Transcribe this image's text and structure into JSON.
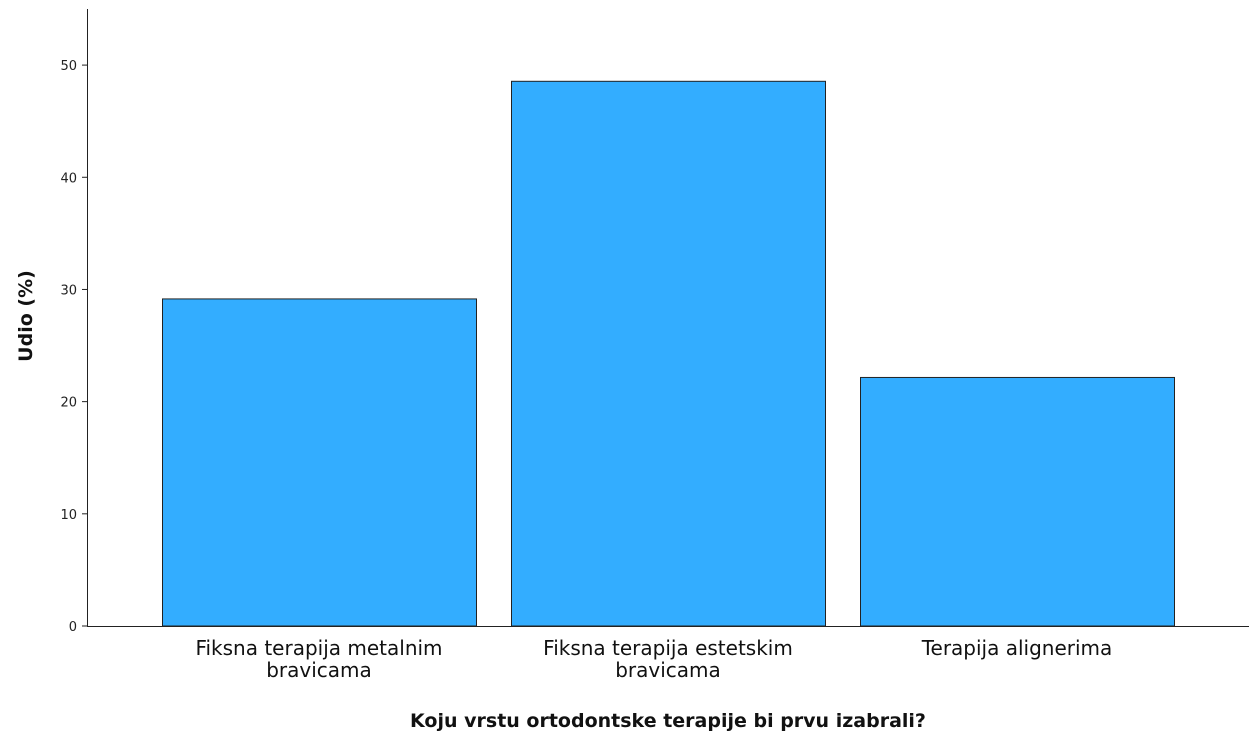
{
  "chart_data": {
    "type": "bar",
    "categories": [
      "Fiksna terapija metalnim bravicama",
      "Fiksna terapija estetskim bravicama",
      "Terapija alignerima"
    ],
    "category_lines": [
      [
        "Fiksna terapija metalnim",
        "bravicama"
      ],
      [
        "Fiksna terapija estetskim",
        "bravicama"
      ],
      [
        "Terapija alignerima"
      ]
    ],
    "values": [
      29.2,
      48.6,
      22.2
    ],
    "xlabel": "Koju vrstu ortodontske terapije bi prvu izabrali?",
    "ylabel": "Udio (%)",
    "ylim": [
      0,
      55
    ],
    "yticks": [
      "0",
      "10",
      "20",
      "30",
      "40",
      "50"
    ],
    "grid": false,
    "bar_color": "#33adff",
    "bar_edge_color": "#222222"
  }
}
